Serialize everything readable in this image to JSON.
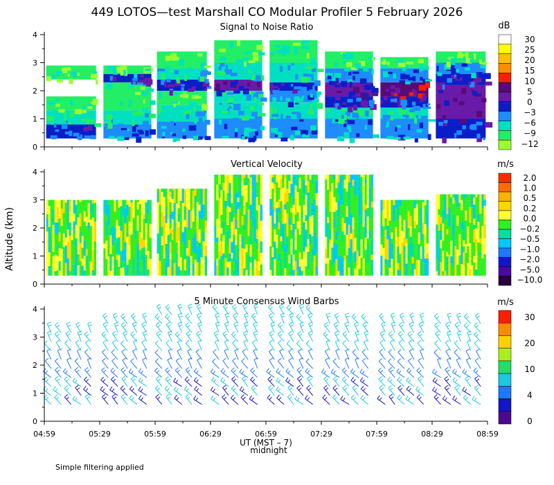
{
  "title": "449 LOTOS—test Marshall CO Modular Profiler  5 February 2026",
  "ylabel": "Altitude (km)",
  "xlabel": "UT  (MST – 7)",
  "midnight_label": "midnight",
  "footnote": "Simple filtering applied",
  "x_ticks": [
    "04:59",
    "05:29",
    "05:59",
    "06:29",
    "06:59",
    "07:29",
    "07:59",
    "08:29",
    "08:59"
  ],
  "y_ticks": [
    "0",
    "1",
    "2",
    "3",
    "4"
  ],
  "chart_data": [
    {
      "type": "heatmap",
      "title": "Signal to Noise Ratio",
      "ylim": [
        0,
        4
      ],
      "colorbar": {
        "unit": "dB",
        "labels": [
          "30",
          "25",
          "20",
          "15",
          "10",
          "5",
          "0",
          "−3",
          "−6",
          "−9",
          "−12"
        ],
        "colors": [
          "#ffffff",
          "#ffff00",
          "#ffc000",
          "#ff8c00",
          "#ff1e00",
          "#5a0a78",
          "#6a1aa8",
          "#0a1ec8",
          "#1e8cff",
          "#00e0c0",
          "#22ee66",
          "#99ff33"
        ]
      },
      "segments": [
        {
          "start": "05:00",
          "end": "05:27",
          "profile": [
            [
              0.3,
              0.8,
              -3
            ],
            [
              0.8,
              1.3,
              -9
            ],
            [
              1.3,
              1.8,
              -12
            ],
            [
              2.4,
              2.9,
              -12
            ]
          ]
        },
        {
          "start": "05:31",
          "end": "05:57",
          "profile": [
            [
              0.3,
              0.8,
              -6
            ],
            [
              0.8,
              1.3,
              -9
            ],
            [
              1.3,
              2.3,
              -12
            ],
            [
              2.3,
              2.6,
              -3
            ],
            [
              2.6,
              2.9,
              -12
            ]
          ]
        },
        {
          "start": "06:00",
          "end": "06:27",
          "profile": [
            [
              0.3,
              0.9,
              -6
            ],
            [
              0.9,
              1.5,
              -9
            ],
            [
              1.5,
              2.0,
              -12
            ],
            [
              2.0,
              2.4,
              -3
            ],
            [
              2.4,
              2.8,
              -9
            ],
            [
              2.8,
              3.4,
              -12
            ]
          ]
        },
        {
          "start": "06:31",
          "end": "06:57",
          "profile": [
            [
              0.3,
              1.0,
              -6
            ],
            [
              1.0,
              1.6,
              -9
            ],
            [
              1.6,
              2.0,
              -9
            ],
            [
              2.0,
              2.4,
              0
            ],
            [
              2.4,
              3.0,
              -9
            ],
            [
              3.0,
              3.8,
              -12
            ]
          ]
        },
        {
          "start": "07:01",
          "end": "07:27",
          "profile": [
            [
              0.3,
              1.0,
              -6
            ],
            [
              1.0,
              1.6,
              -9
            ],
            [
              1.6,
              2.0,
              -6
            ],
            [
              2.0,
              2.3,
              -3
            ],
            [
              2.3,
              3.0,
              -9
            ],
            [
              3.0,
              3.8,
              -12
            ]
          ]
        },
        {
          "start": "07:31",
          "end": "07:57",
          "profile": [
            [
              0.3,
              1.0,
              -6
            ],
            [
              1.0,
              1.4,
              -9
            ],
            [
              1.4,
              1.8,
              -3
            ],
            [
              1.8,
              2.3,
              0
            ],
            [
              2.3,
              2.8,
              -6
            ],
            [
              2.8,
              3.4,
              -12
            ]
          ]
        },
        {
          "start": "08:01",
          "end": "08:27",
          "profile": [
            [
              0.3,
              1.0,
              -6
            ],
            [
              1.0,
              1.4,
              -9
            ],
            [
              1.4,
              1.8,
              -3
            ],
            [
              1.8,
              2.3,
              5
            ],
            [
              2.3,
              2.8,
              -6
            ],
            [
              2.8,
              3.2,
              -12
            ]
          ]
        },
        {
          "start": "08:31",
          "end": "08:58",
          "profile": [
            [
              0.3,
              1.0,
              -3
            ],
            [
              1.0,
              2.2,
              0
            ],
            [
              2.2,
              2.6,
              -3
            ],
            [
              2.6,
              3.0,
              -6
            ],
            [
              3.0,
              3.4,
              -12
            ]
          ]
        }
      ]
    },
    {
      "type": "heatmap",
      "title": "Vertical Velocity",
      "ylim": [
        0,
        4
      ],
      "colorbar": {
        "unit": "m/s",
        "labels": [
          "2.0",
          "1.0",
          "0.5",
          "0.2",
          "0.0",
          "−0.2",
          "−0.5",
          "−1.0",
          "−2.0",
          "−5.0",
          "−10.0"
        ],
        "colors": [
          "#ff2a00",
          "#ff6a00",
          "#ffb000",
          "#ffd700",
          "#ffff33",
          "#33ee22",
          "#00e0a0",
          "#00c8ff",
          "#1e78ff",
          "#1414c8",
          "#4a0aa0",
          "#2a003c"
        ]
      },
      "segments": [
        {
          "start": "05:00",
          "end": "05:27",
          "top": 3.0
        },
        {
          "start": "05:31",
          "end": "05:57",
          "top": 3.0
        },
        {
          "start": "06:00",
          "end": "06:27",
          "top": 3.4
        },
        {
          "start": "06:31",
          "end": "06:57",
          "top": 3.9
        },
        {
          "start": "07:01",
          "end": "07:27",
          "top": 3.9
        },
        {
          "start": "07:31",
          "end": "07:57",
          "top": 3.9
        },
        {
          "start": "08:01",
          "end": "08:27",
          "top": 3.0
        },
        {
          "start": "08:31",
          "end": "08:58",
          "top": 3.2
        }
      ]
    },
    {
      "type": "scatter",
      "title": "5 Minute Consensus Wind Barbs",
      "ylim": [
        0,
        4
      ],
      "colorbar": {
        "unit": "m/s",
        "labels": [
          "30",
          "20",
          "10",
          "4",
          "0"
        ],
        "colors": [
          "#ff1e00",
          "#ff8c00",
          "#ffd000",
          "#aaee22",
          "#22dd66",
          "#1ec8e0",
          "#1e78ff",
          "#1414c8",
          "#4a0a90"
        ]
      },
      "segments": [
        {
          "start": "05:00",
          "end": "05:27",
          "top": 3.3
        },
        {
          "start": "05:31",
          "end": "05:57",
          "top": 3.5
        },
        {
          "start": "06:00",
          "end": "06:27",
          "top": 3.9
        },
        {
          "start": "06:31",
          "end": "06:57",
          "top": 3.9
        },
        {
          "start": "07:01",
          "end": "07:27",
          "top": 3.9
        },
        {
          "start": "07:31",
          "end": "07:57",
          "top": 3.5
        },
        {
          "start": "08:01",
          "end": "08:27",
          "top": 3.5
        },
        {
          "start": "08:31",
          "end": "08:58",
          "top": 3.5
        }
      ]
    }
  ]
}
